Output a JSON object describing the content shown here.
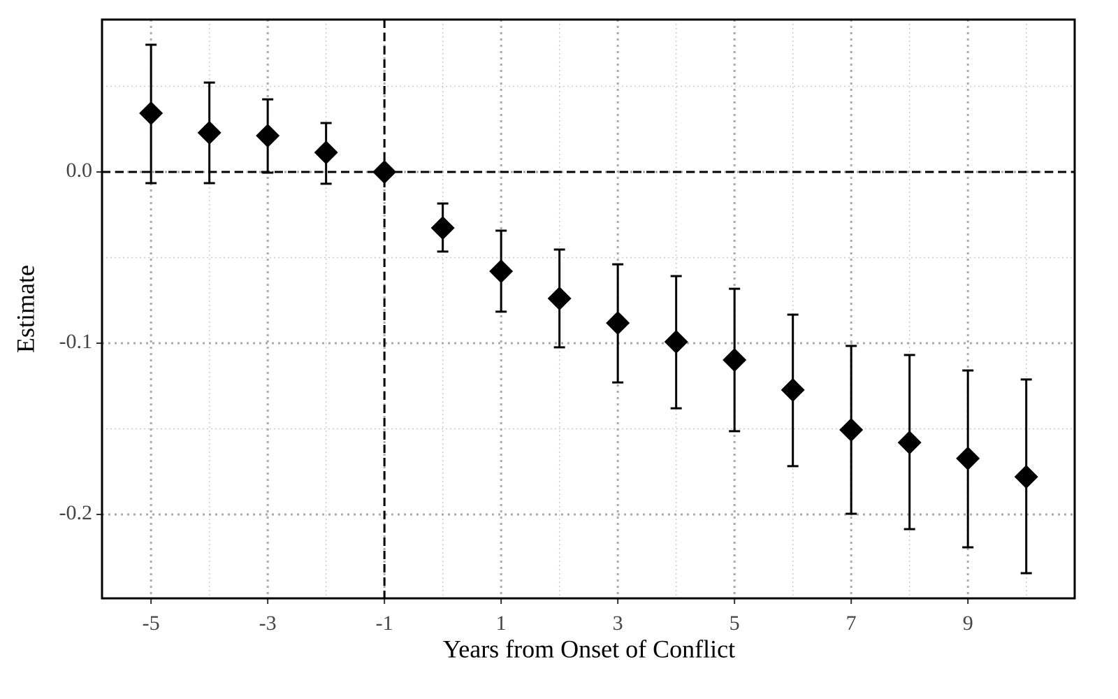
{
  "chart_data": {
    "type": "errorbar",
    "x_label": "Years from Onset of Conflict",
    "y_label": "Estimate",
    "x": [
      -5,
      -4,
      -3,
      -2,
      -1,
      0,
      1,
      2,
      3,
      4,
      5,
      6,
      7,
      8,
      9,
      10
    ],
    "values": [
      0.0343,
      0.0229,
      0.0212,
      0.0114,
      0,
      -0.0327,
      -0.058,
      -0.0739,
      -0.0882,
      -0.0992,
      -0.1098,
      -0.1273,
      -0.1506,
      -0.158,
      -0.1673,
      -0.178
    ],
    "lower": [
      -0.0065,
      -0.0065,
      -0.0004,
      -0.0069,
      null,
      -0.0465,
      -0.0816,
      -0.1024,
      -0.1229,
      -0.138,
      -0.1514,
      -0.1718,
      -0.1996,
      -0.2086,
      -0.2192,
      -0.2343
    ],
    "upper": [
      0.0743,
      0.0522,
      0.0424,
      0.0286,
      null,
      -0.0184,
      -0.0343,
      -0.0453,
      -0.0539,
      -0.0608,
      -0.0682,
      -0.0833,
      -0.1016,
      -0.1069,
      -0.1159,
      -0.1212
    ],
    "color": "#000000",
    "xlim": [
      -5.84,
      10.83
    ],
    "ylim": [
      -0.249,
      0.089
    ],
    "xticks": [
      -5,
      -3,
      -1,
      1,
      3,
      5,
      7,
      9
    ],
    "yticks": [
      {
        "value": 0,
        "label": "0.0"
      },
      -0.1,
      -0.2
    ],
    "x_minor_grid": [
      -4,
      -2,
      0,
      2,
      4,
      6,
      8,
      10
    ],
    "y_minor_grid": [
      0.05,
      -0.05,
      -0.15
    ],
    "hlines": [
      0
    ],
    "vlines": [
      -1
    ],
    "grid": true
  }
}
